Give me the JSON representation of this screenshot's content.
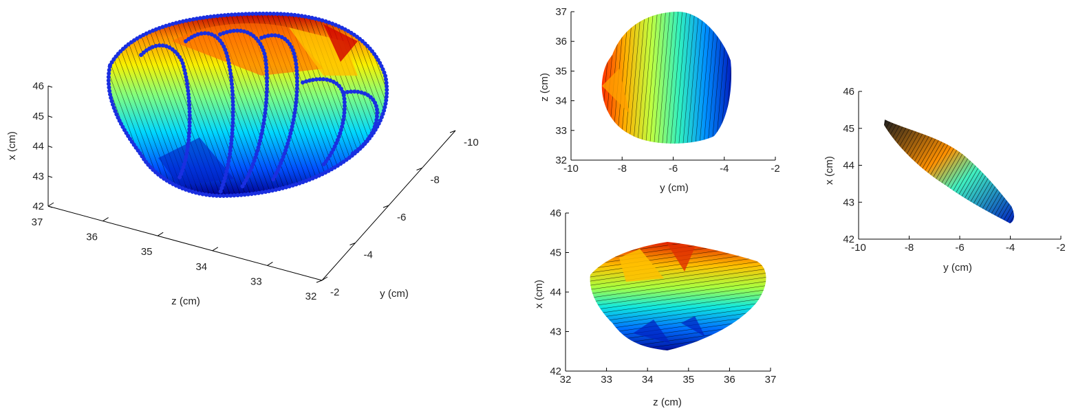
{
  "chart_data": [
    {
      "id": "view-3d",
      "type": "surface",
      "title": "",
      "xlabel": "z (cm)",
      "ylabel": "y (cm)",
      "zlabel": "x (cm)",
      "z_ticks": [
        37,
        36,
        35,
        34,
        33,
        32
      ],
      "y_ticks": [
        -2,
        -4,
        -6,
        -8,
        -10
      ],
      "x_ticks": [
        42,
        43,
        44,
        45,
        46
      ],
      "contour_color": "#1a2fe0",
      "colormap": [
        "#00008f",
        "#0060ff",
        "#00e0ff",
        "#70ff90",
        "#f0ff10",
        "#ffa000",
        "#ff2000",
        "#800000"
      ]
    },
    {
      "id": "view-yz",
      "type": "surface",
      "title": "",
      "xlabel": "y (cm)",
      "ylabel": "z (cm)",
      "xlim": [
        -10,
        -2
      ],
      "ylim": [
        32,
        37
      ],
      "x_ticks": [
        -10,
        -8,
        -6,
        -4,
        -2
      ],
      "y_ticks": [
        32,
        33,
        34,
        35,
        36,
        37
      ]
    },
    {
      "id": "view-zx",
      "type": "surface",
      "title": "",
      "xlabel": "z (cm)",
      "ylabel": "x (cm)",
      "xlim": [
        32,
        37
      ],
      "ylim": [
        42,
        46
      ],
      "x_ticks": [
        32,
        33,
        34,
        35,
        36,
        37
      ],
      "y_ticks": [
        42,
        43,
        44,
        45,
        46
      ]
    },
    {
      "id": "view-yx",
      "type": "surface",
      "title": "",
      "xlabel": "y (cm)",
      "ylabel": "x (cm)",
      "xlim": [
        -10,
        -2
      ],
      "ylim": [
        42,
        46
      ],
      "x_ticks": [
        -10,
        -8,
        -6,
        -4,
        -2
      ],
      "y_ticks": [
        42,
        43,
        44,
        45,
        46
      ]
    }
  ]
}
